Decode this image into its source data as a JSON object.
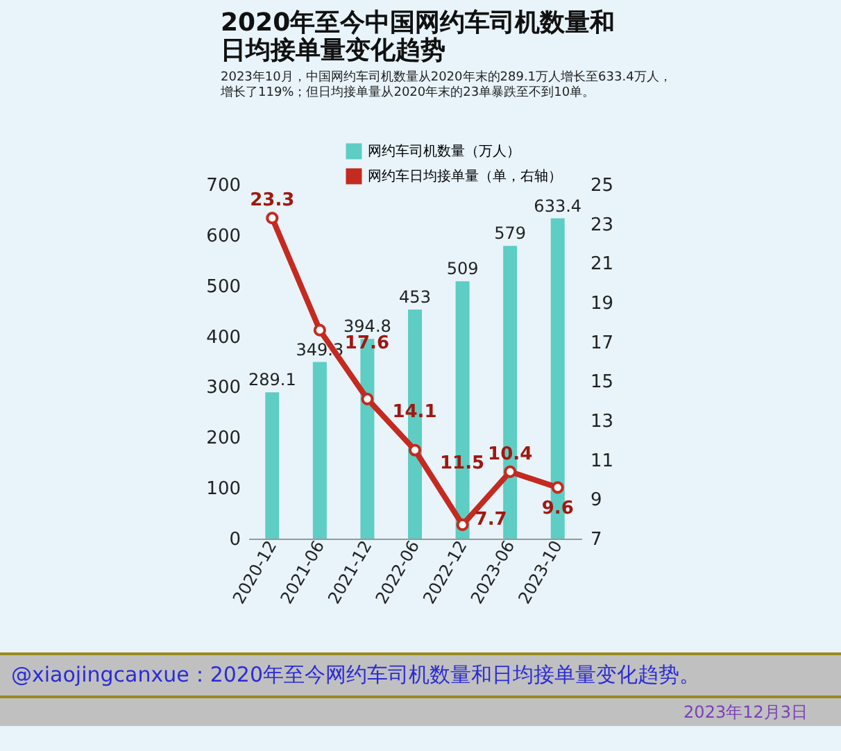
{
  "chart_data": {
    "type": "bar",
    "title": "2020年至今中国网约车司机数量和日均接单量变化趋势",
    "subtitle": "2023年10月，中国网约车司机数量从2020年末的289.1万人增长至633.4万人，增长了119%；但日均接单量从2020年末的23单暴跌至不到10单。",
    "categories": [
      "2020-12",
      "2021-06",
      "2021-12",
      "2022-06",
      "2022-12",
      "2023-06",
      "2023-10"
    ],
    "series": [
      {
        "name": "网约车司机数量（万人）",
        "color": "#5ecdc3",
        "values": [
          289.1,
          349.3,
          394.8,
          453,
          509,
          579,
          633.4
        ]
      },
      {
        "name": "网约车日均接单量（单，右轴）",
        "type": "line",
        "axis": "y2",
        "color": "#c42a1f",
        "marker": "circle",
        "line_style": "solid",
        "values": [
          23.3,
          17.6,
          14.1,
          11.5,
          7.7,
          10.4,
          9.6
        ]
      }
    ],
    "ylim": [
      0,
      700
    ],
    "yticks": [
      0,
      100,
      200,
      300,
      400,
      500,
      600,
      700
    ],
    "y2lim": [
      7,
      25
    ],
    "y2ticks": [
      7,
      9,
      11,
      13,
      15,
      17,
      19,
      21,
      23,
      25
    ],
    "data_labels": true,
    "grid": false,
    "legend": "top",
    "annotations": [
      "@xiaojingcanxue：2020年至今网约车司机数量和日均接单量变化趋势。",
      "2023年12月3日"
    ]
  }
}
